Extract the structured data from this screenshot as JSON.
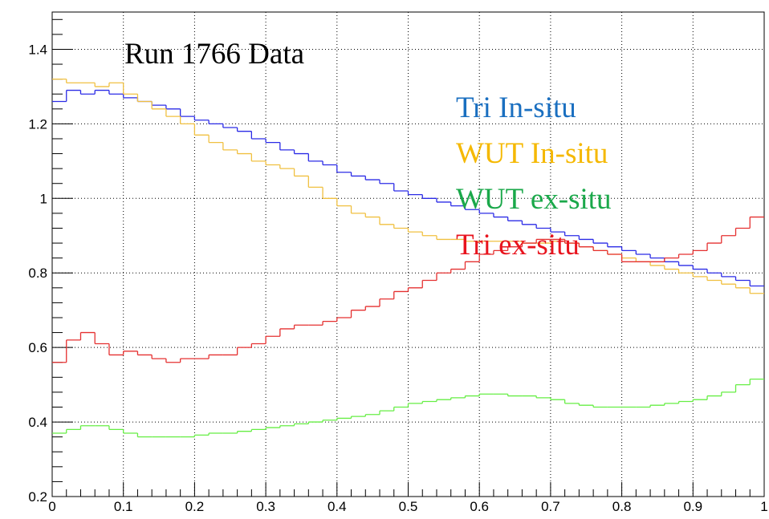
{
  "chart_data": {
    "type": "histogram",
    "title": "Run 1766 Data",
    "bins": [
      0,
      0.02,
      0.04,
      0.06,
      0.08,
      0.1,
      0.12,
      0.14,
      0.16,
      0.18,
      0.2,
      0.22,
      0.24,
      0.26,
      0.28,
      0.3,
      0.32,
      0.34,
      0.36,
      0.38,
      0.4,
      0.42,
      0.44,
      0.46,
      0.48,
      0.5,
      0.52,
      0.54,
      0.56,
      0.58,
      0.6,
      0.62,
      0.64,
      0.66,
      0.68,
      0.7,
      0.72,
      0.74,
      0.76,
      0.78,
      0.8,
      0.82,
      0.84,
      0.86,
      0.88,
      0.9,
      0.92,
      0.94,
      0.96,
      0.98,
      1
    ],
    "series": [
      {
        "name": "Tri In-situ",
        "color": "#2b2be6",
        "legend_color": "#1a6fc0",
        "values": [
          1.26,
          1.29,
          1.28,
          1.29,
          1.28,
          1.27,
          1.26,
          1.25,
          1.24,
          1.22,
          1.21,
          1.2,
          1.19,
          1.18,
          1.16,
          1.15,
          1.13,
          1.12,
          1.1,
          1.09,
          1.07,
          1.06,
          1.05,
          1.04,
          1.02,
          1.01,
          1.0,
          0.99,
          0.98,
          0.97,
          0.96,
          0.95,
          0.94,
          0.93,
          0.92,
          0.91,
          0.9,
          0.89,
          0.88,
          0.87,
          0.86,
          0.85,
          0.84,
          0.83,
          0.82,
          0.81,
          0.8,
          0.79,
          0.78,
          0.765
        ]
      },
      {
        "name": "WUT In-situ",
        "color": "#f0c040",
        "legend_color": "#f5b800",
        "values": [
          1.32,
          1.31,
          1.31,
          1.3,
          1.31,
          1.28,
          1.26,
          1.24,
          1.22,
          1.2,
          1.17,
          1.15,
          1.13,
          1.12,
          1.1,
          1.09,
          1.08,
          1.06,
          1.03,
          1.0,
          0.98,
          0.96,
          0.95,
          0.93,
          0.92,
          0.91,
          0.9,
          0.89,
          0.89,
          0.885,
          0.885,
          0.885,
          0.885,
          0.88,
          0.88,
          0.885,
          0.88,
          0.87,
          0.86,
          0.85,
          0.84,
          0.83,
          0.82,
          0.81,
          0.8,
          0.79,
          0.78,
          0.77,
          0.76,
          0.745
        ]
      },
      {
        "name": "WUT ex-situ",
        "color": "#66ee44",
        "legend_color": "#1aa84a",
        "values": [
          0.37,
          0.38,
          0.39,
          0.39,
          0.38,
          0.37,
          0.36,
          0.36,
          0.36,
          0.36,
          0.365,
          0.37,
          0.37,
          0.375,
          0.38,
          0.385,
          0.39,
          0.395,
          0.4,
          0.405,
          0.41,
          0.415,
          0.42,
          0.43,
          0.44,
          0.45,
          0.455,
          0.46,
          0.465,
          0.47,
          0.475,
          0.475,
          0.47,
          0.47,
          0.465,
          0.46,
          0.45,
          0.445,
          0.44,
          0.44,
          0.44,
          0.44,
          0.445,
          0.45,
          0.455,
          0.46,
          0.47,
          0.48,
          0.5,
          0.515
        ]
      },
      {
        "name": "Tri ex-situ",
        "color": "#e53030",
        "legend_color": "#e8141e",
        "values": [
          0.56,
          0.62,
          0.64,
          0.61,
          0.58,
          0.59,
          0.58,
          0.57,
          0.56,
          0.57,
          0.57,
          0.58,
          0.58,
          0.6,
          0.61,
          0.63,
          0.65,
          0.66,
          0.66,
          0.67,
          0.68,
          0.7,
          0.71,
          0.73,
          0.75,
          0.76,
          0.78,
          0.8,
          0.81,
          0.83,
          0.85,
          0.86,
          0.87,
          0.88,
          0.89,
          0.89,
          0.88,
          0.87,
          0.86,
          0.85,
          0.83,
          0.83,
          0.83,
          0.84,
          0.85,
          0.86,
          0.88,
          0.9,
          0.92,
          0.95
        ]
      }
    ],
    "xlim": [
      0,
      1
    ],
    "xticks": [
      0,
      0.1,
      0.2,
      0.3,
      0.4,
      0.5,
      0.6,
      0.7,
      0.8,
      0.9,
      1
    ],
    "ylim": [
      0.2,
      1.5
    ],
    "yticks": [
      0.2,
      0.4,
      0.6,
      0.8,
      1,
      1.2,
      1.4
    ],
    "grid": true
  }
}
